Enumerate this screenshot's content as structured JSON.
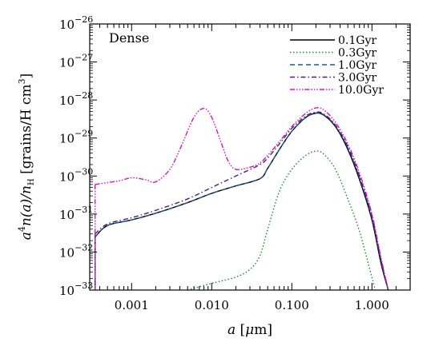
{
  "chart_data": {
    "type": "line",
    "title": "",
    "annotation": "Dense",
    "xlabel_parts": [
      "a",
      " [",
      "μ",
      "m]"
    ],
    "ylabel_parts": [
      "a",
      "4",
      "n(a)/n",
      "H",
      " [grains/H cm",
      "3",
      "]"
    ],
    "xscale": "log",
    "yscale": "log",
    "xlim": [
      0.0003,
      3.0
    ],
    "ylim": [
      1e-33,
      1e-26
    ],
    "xticks": [
      {
        "value": 0.001,
        "label": "0.001"
      },
      {
        "value": 0.01,
        "label": "0.010"
      },
      {
        "value": 0.1,
        "label": "0.100"
      },
      {
        "value": 1.0,
        "label": "1.000"
      }
    ],
    "yticks": [
      {
        "exp": -33,
        "base": "10",
        "label": "−33"
      },
      {
        "exp": -32,
        "base": "10",
        "label": "−32"
      },
      {
        "exp": -31,
        "base": "10",
        "label": "−31"
      },
      {
        "exp": -30,
        "base": "10",
        "label": "−30"
      },
      {
        "exp": -29,
        "base": "10",
        "label": "−29"
      },
      {
        "exp": -28,
        "base": "10",
        "label": "−28"
      },
      {
        "exp": -27,
        "base": "10",
        "label": "−27"
      },
      {
        "exp": -26,
        "base": "10",
        "label": "−26"
      }
    ],
    "legend_position": "top-right",
    "grid": false,
    "series": [
      {
        "name": "0.1Gyr",
        "color": "#000000",
        "dash": "",
        "points": [
          [
            0.00035,
            2.5e-32
          ],
          [
            0.0005,
            5e-32
          ],
          [
            0.001,
            7e-32
          ],
          [
            0.002,
            1.05e-31
          ],
          [
            0.005,
            2e-31
          ],
          [
            0.01,
            3.5e-31
          ],
          [
            0.02,
            5.5e-31
          ],
          [
            0.04,
            8.5e-31
          ],
          [
            0.05,
            1.6e-30
          ],
          [
            0.07,
            5e-30
          ],
          [
            0.1,
            1.5e-29
          ],
          [
            0.15,
            3.5e-29
          ],
          [
            0.2,
            4.5e-29
          ],
          [
            0.25,
            4e-29
          ],
          [
            0.35,
            2e-29
          ],
          [
            0.5,
            5e-30
          ],
          [
            0.7,
            8e-31
          ],
          [
            1.0,
            7e-32
          ],
          [
            1.3,
            5e-33
          ],
          [
            1.6,
            1e-33
          ]
        ]
      },
      {
        "name": "0.3Gyr",
        "color": "#1a8c2e",
        "dash": "1.5,2.5",
        "points": [
          [
            0.005,
            1e-33
          ],
          [
            0.01,
            1.5e-33
          ],
          [
            0.02,
            2.2e-33
          ],
          [
            0.03,
            3.5e-33
          ],
          [
            0.04,
            8e-33
          ],
          [
            0.05,
            4e-32
          ],
          [
            0.07,
            4e-31
          ],
          [
            0.1,
            1.5e-30
          ],
          [
            0.15,
            3.5e-30
          ],
          [
            0.2,
            4.5e-30
          ],
          [
            0.25,
            3.8e-30
          ],
          [
            0.35,
            1.5e-30
          ],
          [
            0.5,
            2.5e-31
          ],
          [
            0.7,
            3.5e-32
          ],
          [
            0.9,
            5e-33
          ],
          [
            1.1,
            1e-33
          ]
        ]
      },
      {
        "name": "1.0Gyr",
        "color": "#1f5a8c",
        "dash": "6,4",
        "points": [
          [
            0.00035,
            2.5e-32
          ],
          [
            0.0005,
            5e-32
          ],
          [
            0.001,
            7e-32
          ],
          [
            0.002,
            1.05e-31
          ],
          [
            0.005,
            2e-31
          ],
          [
            0.01,
            3.5e-31
          ],
          [
            0.02,
            5.5e-31
          ],
          [
            0.04,
            8.5e-31
          ],
          [
            0.05,
            1.6e-30
          ],
          [
            0.07,
            5e-30
          ],
          [
            0.1,
            1.5e-29
          ],
          [
            0.15,
            3.5e-29
          ],
          [
            0.2,
            4.6e-29
          ],
          [
            0.25,
            4.1e-29
          ],
          [
            0.35,
            2.1e-29
          ],
          [
            0.5,
            5.5e-30
          ],
          [
            0.7,
            9e-31
          ],
          [
            1.0,
            8e-32
          ],
          [
            1.3,
            6e-33
          ],
          [
            1.6,
            1e-33
          ]
        ]
      },
      {
        "name": "3.0Gyr",
        "color": "#4b1c8c",
        "dash": "6,3,1.5,3",
        "points": [
          [
            0.00035,
            3e-32
          ],
          [
            0.0005,
            5.5e-32
          ],
          [
            0.001,
            8e-32
          ],
          [
            0.002,
            1.25e-31
          ],
          [
            0.005,
            2.5e-31
          ],
          [
            0.01,
            5e-31
          ],
          [
            0.02,
            1e-30
          ],
          [
            0.04,
            2e-30
          ],
          [
            0.05,
            3e-30
          ],
          [
            0.07,
            7e-30
          ],
          [
            0.1,
            1.8e-29
          ],
          [
            0.15,
            3.8e-29
          ],
          [
            0.2,
            4.8e-29
          ],
          [
            0.25,
            4.3e-29
          ],
          [
            0.35,
            2.2e-29
          ],
          [
            0.5,
            6e-30
          ],
          [
            0.7,
            1e-30
          ],
          [
            1.0,
            9e-32
          ],
          [
            1.3,
            6e-33
          ],
          [
            1.6,
            1e-33
          ]
        ]
      },
      {
        "name": "10.0Gyr",
        "color": "#e010c8",
        "dash": "6,2,1.5,2,1.5,2,1.5,2",
        "points": [
          [
            0.00035,
            6e-31
          ],
          [
            0.0007,
            7.5e-31
          ],
          [
            0.001,
            9e-31
          ],
          [
            0.0015,
            8e-31
          ],
          [
            0.002,
            7e-31
          ],
          [
            0.003,
            1.5e-30
          ],
          [
            0.004,
            5e-30
          ],
          [
            0.006,
            3.5e-29
          ],
          [
            0.008,
            6e-29
          ],
          [
            0.01,
            3.5e-29
          ],
          [
            0.013,
            8e-30
          ],
          [
            0.016,
            2.5e-30
          ],
          [
            0.02,
            1.5e-30
          ],
          [
            0.03,
            1.7e-30
          ],
          [
            0.04,
            2.2e-30
          ],
          [
            0.05,
            3.5e-30
          ],
          [
            0.07,
            8e-30
          ],
          [
            0.1,
            2e-29
          ],
          [
            0.15,
            4.5e-29
          ],
          [
            0.2,
            6.2e-29
          ],
          [
            0.25,
            5.5e-29
          ],
          [
            0.35,
            2.6e-29
          ],
          [
            0.5,
            7e-30
          ],
          [
            0.7,
            1.2e-30
          ],
          [
            1.0,
            1e-31
          ],
          [
            1.3,
            7e-33
          ],
          [
            1.6,
            1e-33
          ]
        ]
      }
    ]
  }
}
